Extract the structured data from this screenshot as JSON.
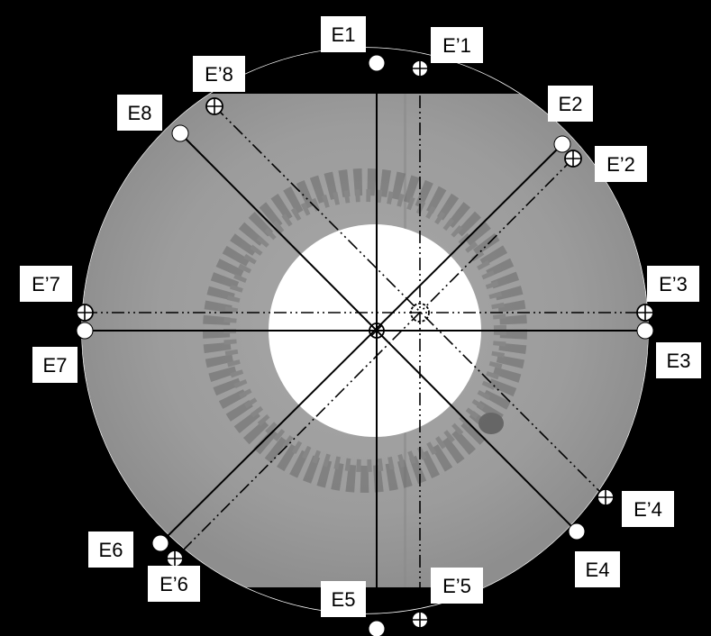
{
  "colors": {
    "background": "#000000",
    "sample_gray": "#9b9b9b",
    "sample_dark": "#6f6f6f",
    "hole": "#ffffff",
    "lines": "#000000",
    "label_box": "#ffffff"
  },
  "labels": {
    "E1": "E1",
    "E2": "E2",
    "E3": "E3",
    "E4": "E4",
    "E5": "E5",
    "E6": "E6",
    "E7": "E7",
    "E8": "E8",
    "E1p": "E’1",
    "E2p": "E’2",
    "E3p": "E’3",
    "E4p": "E’4",
    "E5p": "E’5",
    "E6p": "E’6",
    "E7p": "E’7",
    "E8p": "E’8"
  }
}
